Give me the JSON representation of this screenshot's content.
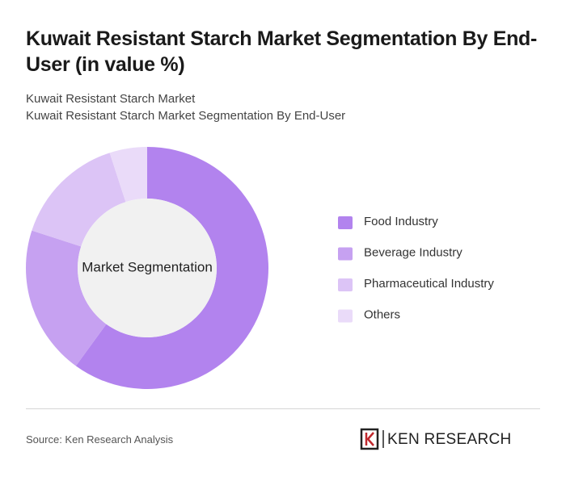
{
  "chart_data": {
    "type": "donut",
    "title": "Kuwait Resistant Starch Market Segmentation By End-User (in value %)",
    "subtitle": [
      "Kuwait Resistant Starch Market",
      "Kuwait Resistant Starch Market Segmentation By End-User"
    ],
    "center_label": "Market Segmentation",
    "categories": [
      "Food Industry",
      "Beverage Industry",
      "Pharmaceutical Industry",
      "Others"
    ],
    "values": [
      60,
      20,
      15,
      5
    ],
    "colors": [
      "#b283ee",
      "#c6a1f1",
      "#dcc4f6",
      "#eadbf9"
    ],
    "source": "Source: Ken Research Analysis",
    "logo": "KEN RESEARCH"
  }
}
